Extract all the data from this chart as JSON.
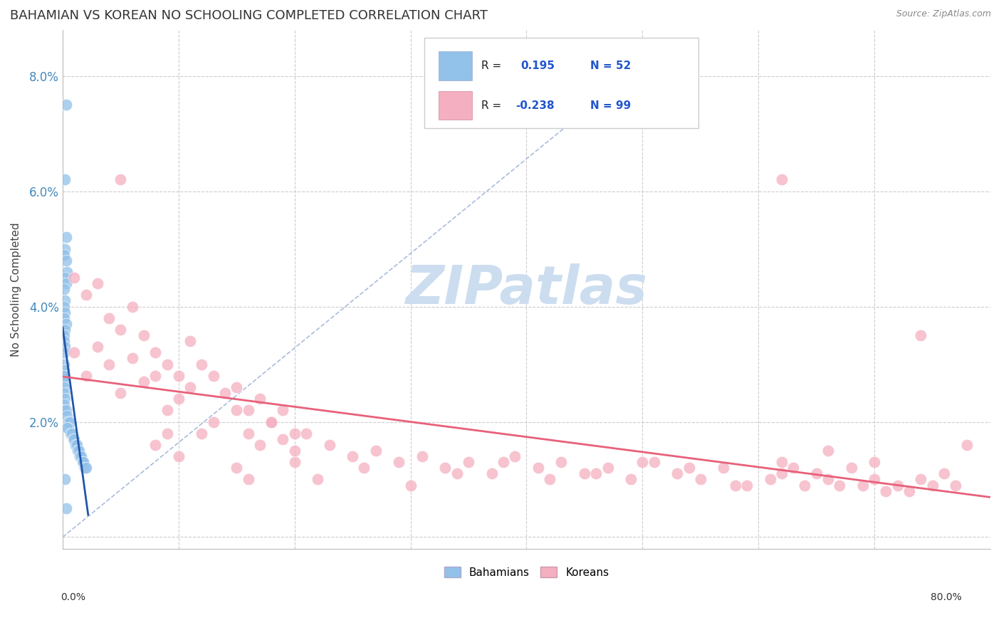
{
  "title": "BAHAMIAN VS KOREAN NO SCHOOLING COMPLETED CORRELATION CHART",
  "source": "Source: ZipAtlas.com",
  "ylabel": "No Schooling Completed",
  "yticks": [
    0.0,
    0.02,
    0.04,
    0.06,
    0.08
  ],
  "ytick_labels": [
    "",
    "2.0%",
    "4.0%",
    "6.0%",
    "8.0%"
  ],
  "xlim": [
    0.0,
    0.8
  ],
  "ylim": [
    -0.002,
    0.088
  ],
  "r_bahamian": 0.195,
  "n_bahamian": 52,
  "r_korean": -0.238,
  "n_korean": 99,
  "blue_color": "#92c1e9",
  "pink_color": "#f4afc0",
  "blue_line_color": "#2255aa",
  "pink_line_color": "#e8607a",
  "legend_blue_label": "Bahamians",
  "legend_pink_label": "Koreans",
  "watermark": "ZIPatlas",
  "watermark_color": "#ccddf0",
  "bah_x": [
    0.003,
    0.002,
    0.003,
    0.002,
    0.001,
    0.003,
    0.004,
    0.002,
    0.003,
    0.001,
    0.002,
    0.001,
    0.002,
    0.001,
    0.003,
    0.002,
    0.001,
    0.001,
    0.002,
    0.001,
    0.001,
    0.001,
    0.002,
    0.001,
    0.001,
    0.001,
    0.001,
    0.002,
    0.001,
    0.001,
    0.003,
    0.004,
    0.005,
    0.006,
    0.005,
    0.004,
    0.007,
    0.008,
    0.009,
    0.01,
    0.011,
    0.012,
    0.013,
    0.014,
    0.015,
    0.016,
    0.017,
    0.018,
    0.019,
    0.02,
    0.002,
    0.003
  ],
  "bah_y": [
    0.075,
    0.062,
    0.052,
    0.05,
    0.049,
    0.048,
    0.046,
    0.045,
    0.044,
    0.043,
    0.041,
    0.04,
    0.039,
    0.038,
    0.037,
    0.036,
    0.035,
    0.034,
    0.033,
    0.032,
    0.03,
    0.029,
    0.028,
    0.028,
    0.027,
    0.026,
    0.025,
    0.024,
    0.023,
    0.022,
    0.022,
    0.021,
    0.02,
    0.02,
    0.019,
    0.019,
    0.018,
    0.018,
    0.017,
    0.017,
    0.016,
    0.016,
    0.015,
    0.015,
    0.014,
    0.014,
    0.013,
    0.013,
    0.012,
    0.012,
    0.01,
    0.005
  ],
  "kor_x": [
    0.01,
    0.02,
    0.03,
    0.04,
    0.05,
    0.06,
    0.07,
    0.08,
    0.09,
    0.1,
    0.11,
    0.12,
    0.13,
    0.14,
    0.15,
    0.16,
    0.17,
    0.18,
    0.19,
    0.2,
    0.01,
    0.02,
    0.03,
    0.04,
    0.05,
    0.06,
    0.07,
    0.08,
    0.09,
    0.1,
    0.11,
    0.12,
    0.13,
    0.15,
    0.16,
    0.17,
    0.18,
    0.19,
    0.2,
    0.21,
    0.23,
    0.25,
    0.27,
    0.29,
    0.31,
    0.33,
    0.35,
    0.37,
    0.39,
    0.41,
    0.43,
    0.45,
    0.47,
    0.49,
    0.51,
    0.53,
    0.55,
    0.57,
    0.59,
    0.61,
    0.62,
    0.63,
    0.64,
    0.65,
    0.66,
    0.67,
    0.68,
    0.69,
    0.7,
    0.71,
    0.72,
    0.73,
    0.74,
    0.75,
    0.76,
    0.77,
    0.05,
    0.62,
    0.74,
    0.78,
    0.08,
    0.09,
    0.1,
    0.15,
    0.16,
    0.2,
    0.22,
    0.26,
    0.3,
    0.34,
    0.38,
    0.42,
    0.46,
    0.5,
    0.54,
    0.58,
    0.62,
    0.66,
    0.7
  ],
  "kor_y": [
    0.045,
    0.042,
    0.044,
    0.038,
    0.036,
    0.04,
    0.035,
    0.032,
    0.03,
    0.028,
    0.034,
    0.03,
    0.028,
    0.025,
    0.026,
    0.022,
    0.024,
    0.02,
    0.022,
    0.018,
    0.032,
    0.028,
    0.033,
    0.03,
    0.025,
    0.031,
    0.027,
    0.028,
    0.022,
    0.024,
    0.026,
    0.018,
    0.02,
    0.022,
    0.018,
    0.016,
    0.02,
    0.017,
    0.015,
    0.018,
    0.016,
    0.014,
    0.015,
    0.013,
    0.014,
    0.012,
    0.013,
    0.011,
    0.014,
    0.012,
    0.013,
    0.011,
    0.012,
    0.01,
    0.013,
    0.011,
    0.01,
    0.012,
    0.009,
    0.01,
    0.013,
    0.012,
    0.009,
    0.011,
    0.01,
    0.009,
    0.012,
    0.009,
    0.01,
    0.008,
    0.009,
    0.008,
    0.01,
    0.009,
    0.011,
    0.009,
    0.062,
    0.062,
    0.035,
    0.016,
    0.016,
    0.018,
    0.014,
    0.012,
    0.01,
    0.013,
    0.01,
    0.012,
    0.009,
    0.011,
    0.013,
    0.01,
    0.011,
    0.013,
    0.012,
    0.009,
    0.011,
    0.015,
    0.013
  ]
}
